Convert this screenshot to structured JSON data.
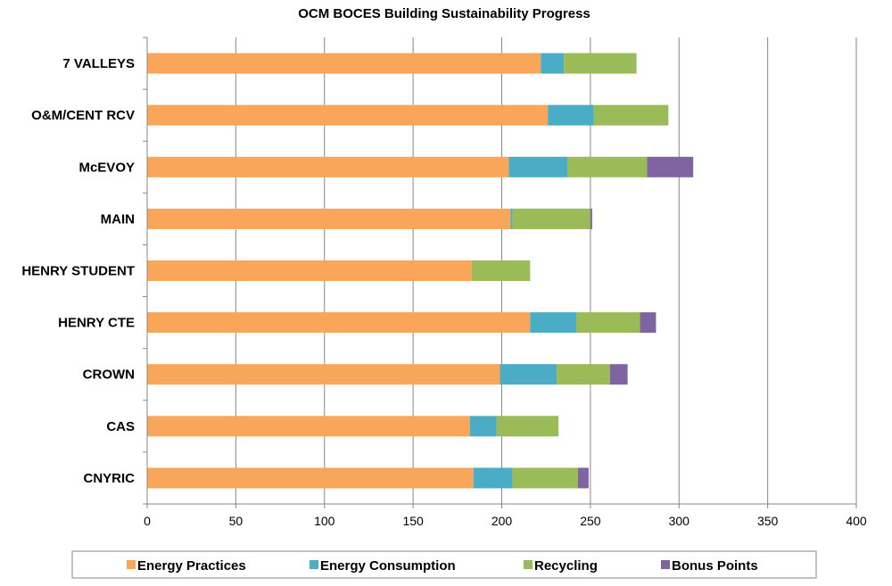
{
  "chart_data": {
    "type": "bar",
    "orientation": "horizontal",
    "stacked": true,
    "title": "OCM BOCES Building Sustainability Progress",
    "xlabel": "",
    "ylabel": "",
    "xlim": [
      0,
      400
    ],
    "x_ticks": [
      0,
      50,
      100,
      150,
      200,
      250,
      300,
      350,
      400
    ],
    "grid": "vertical",
    "legend_position": "bottom",
    "categories": [
      "7 VALLEYS",
      "O&M/CENT RCV",
      "McEVOY",
      "MAIN",
      "HENRY STUDENT",
      "HENRY CTE",
      "CROWN",
      "CAS",
      "CNYRIC"
    ],
    "series": [
      {
        "name": "Energy Practices",
        "color": "#F9A65A",
        "values": [
          222,
          226,
          204,
          205,
          183,
          216,
          199,
          182,
          184
        ]
      },
      {
        "name": "Energy Consumption",
        "color": "#4BACC6",
        "values": [
          13,
          26,
          33,
          1,
          0,
          26,
          32,
          15,
          22
        ]
      },
      {
        "name": "Recycling",
        "color": "#9BBB59",
        "values": [
          41,
          42,
          45,
          44,
          33,
          36,
          30,
          35,
          37
        ]
      },
      {
        "name": "Bonus Points",
        "color": "#8064A2",
        "values": [
          0,
          0,
          26,
          1,
          0,
          9,
          10,
          0,
          6
        ]
      }
    ]
  }
}
